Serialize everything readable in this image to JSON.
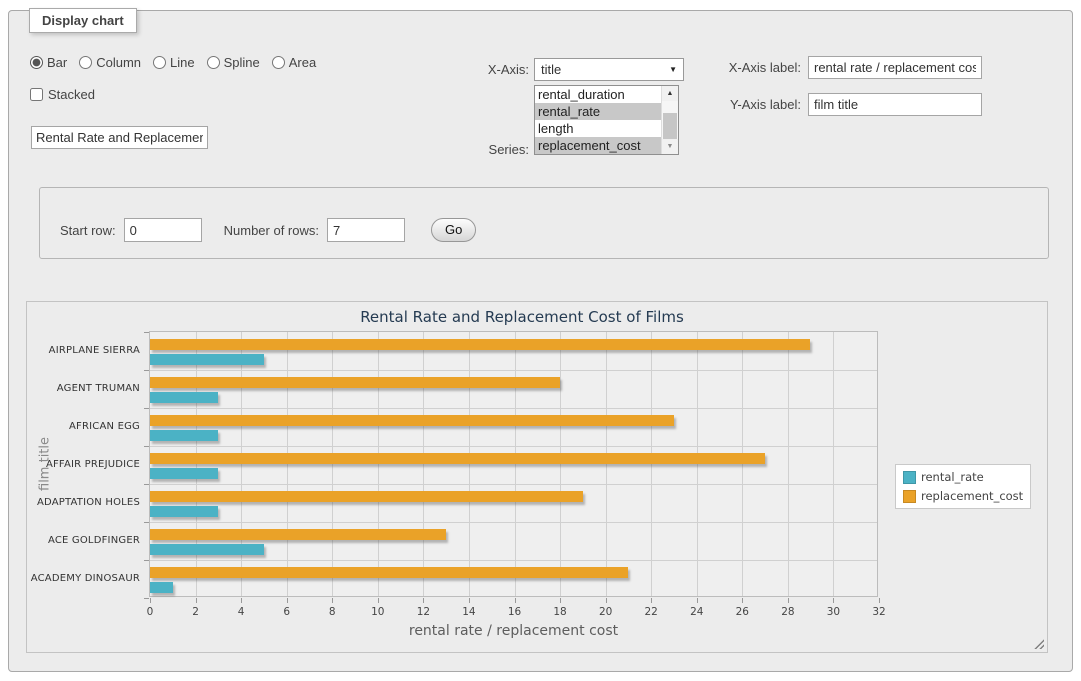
{
  "panel": {
    "legend": "Display chart"
  },
  "controls": {
    "types": [
      {
        "label": "Bar",
        "checked": true
      },
      {
        "label": "Column",
        "checked": false
      },
      {
        "label": "Line",
        "checked": false
      },
      {
        "label": "Spline",
        "checked": false
      },
      {
        "label": "Area",
        "checked": false
      }
    ],
    "stacked_label": "Stacked",
    "stacked_checked": false
  },
  "title_input": {
    "value": "Rental Rate and Replacement Cost of Films"
  },
  "x_axis": {
    "label": "X-Axis:",
    "value": "title"
  },
  "series_select": {
    "label": "Series:",
    "options": [
      {
        "text": "rental_duration",
        "selected": false
      },
      {
        "text": "rental_rate",
        "selected": true
      },
      {
        "text": "length",
        "selected": false
      },
      {
        "text": "replacement_cost",
        "selected": true
      }
    ]
  },
  "x_axis_label": {
    "label": "X-Axis label:",
    "value": "rental rate / replacement cost"
  },
  "y_axis_label": {
    "label": "Y-Axis label:",
    "value": "film title"
  },
  "rows_form": {
    "start_row_label": "Start row:",
    "start_row_value": "0",
    "num_rows_label": "Number of rows:",
    "num_rows_value": "7",
    "go_label": "Go"
  },
  "chart_data": {
    "type": "bar",
    "orientation": "horizontal",
    "title": "Rental Rate and Replacement Cost of Films",
    "xlabel": "rental rate / replacement cost",
    "ylabel": "film title",
    "categories": [
      "AIRPLANE SIERRA",
      "AGENT TRUMAN",
      "AFRICAN EGG",
      "AFFAIR PREJUDICE",
      "ADAPTATION HOLES",
      "ACE GOLDFINGER",
      "ACADEMY DINOSAUR"
    ],
    "series": [
      {
        "name": "rental_rate",
        "color": "#4bb2c5",
        "values": [
          4.99,
          2.99,
          2.99,
          2.99,
          2.99,
          4.99,
          0.99
        ]
      },
      {
        "name": "replacement_cost",
        "color": "#eaa228",
        "values": [
          28.99,
          17.99,
          22.99,
          26.99,
          18.99,
          12.99,
          20.99
        ]
      }
    ],
    "xlim": [
      0,
      32
    ],
    "xticks": [
      0,
      2,
      4,
      6,
      8,
      10,
      12,
      14,
      16,
      18,
      20,
      22,
      24,
      26,
      28,
      30,
      32
    ],
    "grid": true,
    "legend_position": "right-outside",
    "bar_display_order": "replacement_cost above rental_rate per category"
  }
}
